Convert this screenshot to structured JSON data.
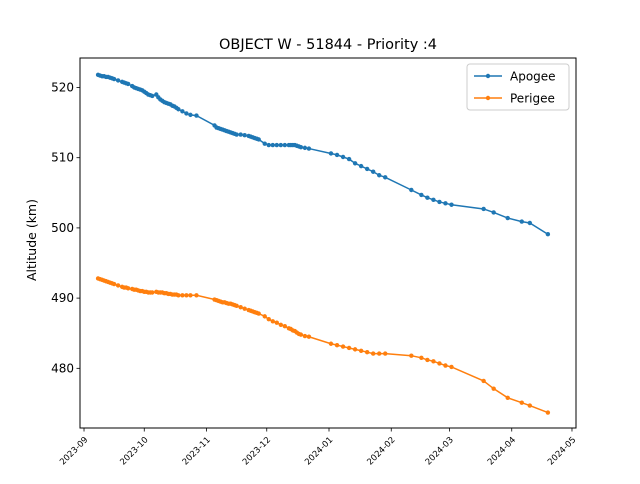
{
  "chart_data": {
    "type": "line",
    "title": "OBJECT W - 51844 - Priority :4",
    "xlabel": "",
    "ylabel": "Altitude (km)",
    "xlim": [
      "2023-08-30",
      "2024-05-03"
    ],
    "ylim": [
      471.5,
      524.2
    ],
    "x_ticks": [
      "2023-09",
      "2023-10",
      "2023-11",
      "2023-12",
      "2024-01",
      "2024-02",
      "2024-03",
      "2024-04",
      "2024-05"
    ],
    "y_ticks": [
      480,
      490,
      500,
      510,
      520
    ],
    "grid": false,
    "legend_position": "top-right",
    "series": [
      {
        "name": "Apogee",
        "color": "#1f77b4",
        "points": [
          [
            "2023-09-08",
            521.8
          ],
          [
            "2023-09-09",
            521.7
          ],
          [
            "2023-09-10",
            521.6
          ],
          [
            "2023-09-11",
            521.6
          ],
          [
            "2023-09-12",
            521.5
          ],
          [
            "2023-09-13",
            521.5
          ],
          [
            "2023-09-14",
            521.4
          ],
          [
            "2023-09-15",
            521.3
          ],
          [
            "2023-09-16",
            521.2
          ],
          [
            "2023-09-18",
            521.0
          ],
          [
            "2023-09-20",
            520.8
          ],
          [
            "2023-09-21",
            520.7
          ],
          [
            "2023-09-22",
            520.6
          ],
          [
            "2023-09-23",
            520.5
          ],
          [
            "2023-09-25",
            520.2
          ],
          [
            "2023-09-26",
            520.0
          ],
          [
            "2023-09-27",
            519.9
          ],
          [
            "2023-09-28",
            519.8
          ],
          [
            "2023-09-29",
            519.7
          ],
          [
            "2023-09-30",
            519.6
          ],
          [
            "2023-10-01",
            519.4
          ],
          [
            "2023-10-02",
            519.2
          ],
          [
            "2023-10-03",
            519.0
          ],
          [
            "2023-10-04",
            518.9
          ],
          [
            "2023-10-05",
            518.8
          ],
          [
            "2023-10-07",
            519.0
          ],
          [
            "2023-10-08",
            518.6
          ],
          [
            "2023-10-09",
            518.3
          ],
          [
            "2023-10-10",
            518.1
          ],
          [
            "2023-10-11",
            517.9
          ],
          [
            "2023-10-12",
            517.8
          ],
          [
            "2023-10-13",
            517.7
          ],
          [
            "2023-10-14",
            517.6
          ],
          [
            "2023-10-15",
            517.4
          ],
          [
            "2023-10-16",
            517.3
          ],
          [
            "2023-10-17",
            517.1
          ],
          [
            "2023-10-18",
            516.9
          ],
          [
            "2023-10-20",
            516.6
          ],
          [
            "2023-10-22",
            516.3
          ],
          [
            "2023-10-24",
            516.1
          ],
          [
            "2023-10-27",
            516.0
          ],
          [
            "2023-11-05",
            514.6
          ],
          [
            "2023-11-06",
            514.3
          ],
          [
            "2023-11-07",
            514.2
          ],
          [
            "2023-11-08",
            514.1
          ],
          [
            "2023-11-09",
            514.0
          ],
          [
            "2023-11-10",
            513.9
          ],
          [
            "2023-11-11",
            513.8
          ],
          [
            "2023-11-12",
            513.7
          ],
          [
            "2023-11-13",
            513.6
          ],
          [
            "2023-11-14",
            513.5
          ],
          [
            "2023-11-15",
            513.4
          ],
          [
            "2023-11-16",
            513.3
          ],
          [
            "2023-11-18",
            513.3
          ],
          [
            "2023-11-20",
            513.2
          ],
          [
            "2023-11-22",
            513.1
          ],
          [
            "2023-11-23",
            513.0
          ],
          [
            "2023-11-24",
            512.9
          ],
          [
            "2023-11-25",
            512.8
          ],
          [
            "2023-11-26",
            512.7
          ],
          [
            "2023-11-27",
            512.6
          ],
          [
            "2023-11-30",
            512.0
          ],
          [
            "2023-12-02",
            511.8
          ],
          [
            "2023-12-04",
            511.8
          ],
          [
            "2023-12-06",
            511.8
          ],
          [
            "2023-12-08",
            511.8
          ],
          [
            "2023-12-10",
            511.8
          ],
          [
            "2023-12-12",
            511.8
          ],
          [
            "2023-12-13",
            511.8
          ],
          [
            "2023-12-14",
            511.8
          ],
          [
            "2023-12-15",
            511.8
          ],
          [
            "2023-12-16",
            511.7
          ],
          [
            "2023-12-17",
            511.6
          ],
          [
            "2023-12-18",
            511.5
          ],
          [
            "2023-12-20",
            511.4
          ],
          [
            "2023-12-22",
            511.3
          ],
          [
            "2024-01-02",
            510.6
          ],
          [
            "2024-01-05",
            510.4
          ],
          [
            "2024-01-08",
            510.1
          ],
          [
            "2024-01-11",
            509.8
          ],
          [
            "2024-01-14",
            509.2
          ],
          [
            "2024-01-17",
            508.8
          ],
          [
            "2024-01-20",
            508.4
          ],
          [
            "2024-01-23",
            508.0
          ],
          [
            "2024-01-26",
            507.5
          ],
          [
            "2024-01-29",
            507.2
          ],
          [
            "2024-02-11",
            505.4
          ],
          [
            "2024-02-16",
            504.7
          ],
          [
            "2024-02-19",
            504.3
          ],
          [
            "2024-02-22",
            504.0
          ],
          [
            "2024-02-25",
            503.7
          ],
          [
            "2024-02-28",
            503.5
          ],
          [
            "2024-03-02",
            503.3
          ],
          [
            "2024-03-18",
            502.7
          ],
          [
            "2024-03-23",
            502.2
          ],
          [
            "2024-03-30",
            501.4
          ],
          [
            "2024-04-06",
            500.9
          ],
          [
            "2024-04-10",
            500.7
          ],
          [
            "2024-04-19",
            499.1
          ]
        ]
      },
      {
        "name": "Perigee",
        "color": "#ff7f0e",
        "points": [
          [
            "2023-09-08",
            492.8
          ],
          [
            "2023-09-09",
            492.7
          ],
          [
            "2023-09-10",
            492.6
          ],
          [
            "2023-09-11",
            492.5
          ],
          [
            "2023-09-12",
            492.4
          ],
          [
            "2023-09-13",
            492.3
          ],
          [
            "2023-09-14",
            492.2
          ],
          [
            "2023-09-15",
            492.1
          ],
          [
            "2023-09-16",
            492.0
          ],
          [
            "2023-09-18",
            491.8
          ],
          [
            "2023-09-20",
            491.6
          ],
          [
            "2023-09-21",
            491.5
          ],
          [
            "2023-09-22",
            491.5
          ],
          [
            "2023-09-23",
            491.4
          ],
          [
            "2023-09-25",
            491.3
          ],
          [
            "2023-09-26",
            491.2
          ],
          [
            "2023-09-27",
            491.2
          ],
          [
            "2023-09-28",
            491.1
          ],
          [
            "2023-09-29",
            491.0
          ],
          [
            "2023-09-30",
            491.0
          ],
          [
            "2023-10-01",
            490.9
          ],
          [
            "2023-10-02",
            490.9
          ],
          [
            "2023-10-03",
            490.8
          ],
          [
            "2023-10-04",
            490.8
          ],
          [
            "2023-10-05",
            490.8
          ],
          [
            "2023-10-07",
            490.9
          ],
          [
            "2023-10-08",
            490.8
          ],
          [
            "2023-10-09",
            490.8
          ],
          [
            "2023-10-10",
            490.8
          ],
          [
            "2023-10-11",
            490.7
          ],
          [
            "2023-10-12",
            490.7
          ],
          [
            "2023-10-13",
            490.6
          ],
          [
            "2023-10-14",
            490.6
          ],
          [
            "2023-10-15",
            490.5
          ],
          [
            "2023-10-16",
            490.5
          ],
          [
            "2023-10-17",
            490.5
          ],
          [
            "2023-10-18",
            490.4
          ],
          [
            "2023-10-20",
            490.4
          ],
          [
            "2023-10-22",
            490.4
          ],
          [
            "2023-10-24",
            490.4
          ],
          [
            "2023-10-27",
            490.4
          ],
          [
            "2023-11-05",
            489.8
          ],
          [
            "2023-11-06",
            489.7
          ],
          [
            "2023-11-07",
            489.6
          ],
          [
            "2023-11-08",
            489.5
          ],
          [
            "2023-11-09",
            489.4
          ],
          [
            "2023-11-10",
            489.4
          ],
          [
            "2023-11-11",
            489.3
          ],
          [
            "2023-11-12",
            489.2
          ],
          [
            "2023-11-13",
            489.2
          ],
          [
            "2023-11-14",
            489.1
          ],
          [
            "2023-11-15",
            489.0
          ],
          [
            "2023-11-16",
            488.9
          ],
          [
            "2023-11-18",
            488.7
          ],
          [
            "2023-11-20",
            488.5
          ],
          [
            "2023-11-22",
            488.3
          ],
          [
            "2023-11-23",
            488.2
          ],
          [
            "2023-11-24",
            488.1
          ],
          [
            "2023-11-25",
            488.0
          ],
          [
            "2023-11-26",
            487.9
          ],
          [
            "2023-11-27",
            487.8
          ],
          [
            "2023-11-30",
            487.4
          ],
          [
            "2023-12-02",
            487.0
          ],
          [
            "2023-12-04",
            486.7
          ],
          [
            "2023-12-06",
            486.5
          ],
          [
            "2023-12-08",
            486.2
          ],
          [
            "2023-12-10",
            486.0
          ],
          [
            "2023-12-12",
            485.7
          ],
          [
            "2023-12-13",
            485.6
          ],
          [
            "2023-12-14",
            485.4
          ],
          [
            "2023-12-15",
            485.3
          ],
          [
            "2023-12-16",
            485.1
          ],
          [
            "2023-12-17",
            484.9
          ],
          [
            "2023-12-18",
            484.8
          ],
          [
            "2023-12-20",
            484.6
          ],
          [
            "2023-12-22",
            484.5
          ],
          [
            "2024-01-02",
            483.5
          ],
          [
            "2024-01-05",
            483.3
          ],
          [
            "2024-01-08",
            483.1
          ],
          [
            "2024-01-11",
            482.9
          ],
          [
            "2024-01-14",
            482.7
          ],
          [
            "2024-01-17",
            482.5
          ],
          [
            "2024-01-20",
            482.3
          ],
          [
            "2024-01-23",
            482.1
          ],
          [
            "2024-01-26",
            482.1
          ],
          [
            "2024-01-29",
            482.1
          ],
          [
            "2024-02-11",
            481.8
          ],
          [
            "2024-02-16",
            481.5
          ],
          [
            "2024-02-19",
            481.2
          ],
          [
            "2024-02-22",
            481.0
          ],
          [
            "2024-02-25",
            480.7
          ],
          [
            "2024-02-28",
            480.4
          ],
          [
            "2024-03-02",
            480.2
          ],
          [
            "2024-03-18",
            478.2
          ],
          [
            "2024-03-23",
            477.1
          ],
          [
            "2024-03-30",
            475.8
          ],
          [
            "2024-04-06",
            475.1
          ],
          [
            "2024-04-10",
            474.7
          ],
          [
            "2024-04-19",
            473.7
          ]
        ]
      }
    ]
  }
}
